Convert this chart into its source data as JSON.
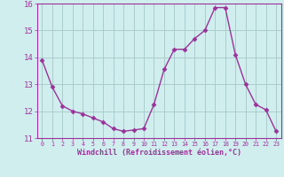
{
  "x": [
    0,
    1,
    2,
    3,
    4,
    5,
    6,
    7,
    8,
    9,
    10,
    11,
    12,
    13,
    14,
    15,
    16,
    17,
    18,
    19,
    20,
    21,
    22,
    23
  ],
  "y": [
    13.9,
    12.9,
    12.2,
    12.0,
    11.9,
    11.75,
    11.6,
    11.35,
    11.25,
    11.3,
    11.35,
    12.25,
    13.55,
    14.3,
    14.3,
    14.7,
    15.0,
    15.85,
    15.85,
    14.1,
    13.0,
    12.25,
    12.05,
    11.25
  ],
  "line_color": "#993399",
  "marker": "D",
  "marker_size": 2.5,
  "bg_color": "#d0eeee",
  "grid_color": "#aacccc",
  "xlabel": "Windchill (Refroidissement éolien,°C)",
  "ylim": [
    11,
    16
  ],
  "xlim_min": -0.5,
  "xlim_max": 23.5,
  "yticks": [
    11,
    12,
    13,
    14,
    15,
    16
  ],
  "xticks": [
    0,
    1,
    2,
    3,
    4,
    5,
    6,
    7,
    8,
    9,
    10,
    11,
    12,
    13,
    14,
    15,
    16,
    17,
    18,
    19,
    20,
    21,
    22,
    23
  ],
  "tick_color": "#993399",
  "label_color": "#993399",
  "axis_color": "#993399",
  "line_width": 1.0,
  "xlabel_fontsize": 6.0,
  "ytick_fontsize": 6.5,
  "xtick_fontsize": 4.8
}
